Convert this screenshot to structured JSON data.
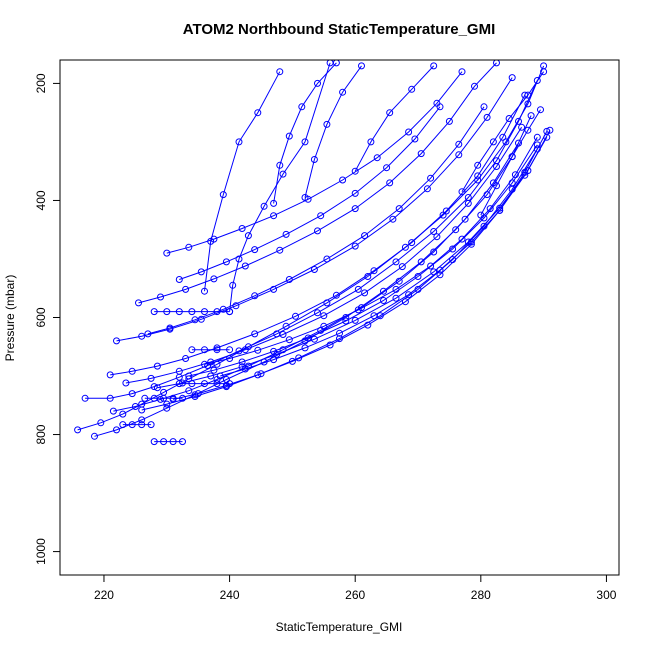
{
  "chart_data": {
    "type": "line",
    "title": "ATOM2 Northbound StaticTemperature_GMI",
    "xlabel": "StaticTemperature_GMI",
    "ylabel": "Pressure (mbar)",
    "xlim": [
      213,
      302
    ],
    "ylim": [
      1040,
      160
    ],
    "y_reversed": true,
    "x_ticks": [
      220,
      240,
      260,
      280,
      300
    ],
    "y_ticks": [
      200,
      400,
      600,
      800,
      1000
    ],
    "grid": false,
    "line_color": "#0000ff",
    "marker": "open-circle",
    "series": [
      {
        "x": [
          215.8,
          219.5,
          223.0,
          226.0,
          229.5,
          233.5,
          238.0,
          243.0,
          249.0,
          255.5,
          262.0,
          268.0,
          274.0,
          279.5,
          284.0,
          287.5,
          290.0
        ],
        "y": [
          792,
          780,
          765,
          748,
          728,
          705,
          680,
          650,
          615,
          575,
          530,
          480,
          425,
          365,
          300,
          235,
          170
        ]
      },
      {
        "x": [
          217.0,
          221.0,
          224.5,
          228.0,
          232.0,
          236.5,
          241.5,
          247.5,
          254.0,
          260.5,
          266.5,
          272.5,
          278.0,
          282.5,
          286.0,
          289.0
        ],
        "y": [
          738,
          738,
          730,
          718,
          702,
          682,
          657,
          628,
          592,
          552,
          505,
          453,
          395,
          332,
          265,
          195
        ]
      },
      {
        "x": [
          218.5,
          222.0,
          226.0,
          230.0,
          234.5,
          239.5,
          245.5,
          252.0,
          258.5,
          264.5,
          270.5,
          276.0,
          281.0,
          285.0,
          288.0
        ],
        "y": [
          803,
          792,
          775,
          755,
          732,
          706,
          676,
          640,
          600,
          555,
          505,
          450,
          390,
          325,
          255
        ]
      },
      {
        "x": [
          221.0,
          224.5,
          228.5,
          233.0,
          238.0,
          244.0,
          250.5,
          257.0,
          263.0,
          269.0,
          274.5,
          279.5,
          283.5,
          287.0
        ],
        "y": [
          698,
          692,
          683,
          670,
          652,
          628,
          598,
          562,
          520,
          472,
          418,
          358,
          292,
          220
        ]
      },
      {
        "x": [
          222.0,
          226.0,
          230.5,
          235.5,
          241.0,
          247.0,
          253.5,
          260.0,
          266.0,
          271.5,
          276.5,
          281.0,
          285.0
        ],
        "y": [
          640,
          632,
          620,
          603,
          580,
          552,
          518,
          478,
          432,
          380,
          322,
          258,
          190
        ]
      },
      {
        "x": [
          225.5,
          229.0,
          233.0,
          237.5,
          242.5,
          248.0,
          254.0,
          260.0,
          265.5,
          270.5,
          275.0,
          279.0,
          282.5
        ],
        "y": [
          575,
          565,
          552,
          534,
          512,
          485,
          452,
          414,
          370,
          320,
          265,
          205,
          165
        ]
      },
      {
        "x": [
          230.0,
          233.5,
          237.5,
          242.0,
          247.0,
          252.5,
          258.0,
          263.5,
          268.5,
          273.0,
          277.0
        ],
        "y": [
          490,
          480,
          466,
          448,
          426,
          398,
          365,
          327,
          283,
          234,
          180
        ]
      },
      {
        "x": [
          232.0,
          235.5,
          239.5,
          244.0,
          249.0,
          254.5,
          260.0,
          265.0,
          269.5,
          273.5
        ],
        "y": [
          535,
          522,
          505,
          484,
          458,
          426,
          388,
          344,
          295,
          240
        ]
      },
      {
        "x": [
          227.0,
          230.5,
          234.5,
          239.0,
          244.0,
          249.5,
          255.5,
          261.5,
          267.0,
          272.0,
          276.5,
          280.5
        ],
        "y": [
          628,
          618,
          604,
          586,
          563,
          535,
          500,
          460,
          414,
          362,
          304,
          240
        ]
      },
      {
        "x": [
          223.5,
          227.5,
          232.0,
          237.0,
          242.5,
          248.5,
          255.0,
          261.5,
          267.5,
          273.0,
          278.0,
          282.5,
          286.5
        ],
        "y": [
          712,
          704,
          692,
          676,
          655,
          629,
          597,
          558,
          513,
          462,
          405,
          342,
          275
        ]
      },
      {
        "x": [
          226.0,
          230.0,
          234.5,
          239.5,
          245.0,
          251.0,
          257.5,
          264.0,
          270.0,
          275.5,
          280.5,
          285.0,
          289.0
        ],
        "y": [
          758,
          748,
          735,
          718,
          696,
          669,
          636,
          597,
          552,
          501,
          444,
          381,
          312
        ]
      },
      {
        "x": [
          228.5,
          232.5,
          237.0,
          242.0,
          247.5,
          253.5,
          260.0,
          266.5,
          272.5,
          278.0,
          283.0,
          287.5,
          291.0
        ],
        "y": [
          720,
          712,
          700,
          684,
          663,
          637,
          605,
          567,
          522,
          471,
          413,
          349,
          280
        ]
      },
      {
        "x": [
          231.0,
          235.0,
          239.5,
          244.5,
          250.0,
          256.0,
          262.0,
          268.0,
          273.5,
          278.5,
          283.0,
          287.0,
          290.5
        ],
        "y": [
          740,
          730,
          716,
          698,
          675,
          647,
          613,
          573,
          527,
          475,
          417,
          352,
          282
        ]
      },
      {
        "x": [
          233.5,
          237.5,
          242.0,
          247.0,
          252.5,
          258.5,
          264.5,
          270.0,
          275.5,
          280.5,
          285.0,
          289.0
        ],
        "y": [
          700,
          690,
          676,
          658,
          635,
          606,
          571,
          530,
          483,
          430,
          370,
          305
        ]
      },
      {
        "x": [
          236.0,
          240.0,
          244.5,
          249.5,
          255.0,
          260.5,
          266.5,
          272.0,
          277.0,
          281.5,
          285.5,
          289.0
        ],
        "y": [
          680,
          670,
          656,
          638,
          615,
          587,
          552,
          512,
          466,
          414,
          356,
          292
        ]
      },
      {
        "x": [
          238.5,
          242.5,
          247.0,
          252.0,
          257.5,
          263.0,
          268.5,
          273.5,
          278.5,
          283.0,
          287.0,
          290.5
        ],
        "y": [
          700,
          688,
          672,
          652,
          627,
          597,
          561,
          519,
          471,
          417,
          357,
          292
        ]
      },
      {
        "x": [
          221.5,
          225.0,
          229.0,
          233.5,
          238.0,
          243.0,
          248.5,
          254.5,
          261.0,
          267.0,
          272.5,
          277.5,
          282.0,
          286.0
        ],
        "y": [
          760,
          752,
          740,
          725,
          706,
          683,
          655,
          622,
          583,
          538,
          488,
          432,
          370,
          302
        ]
      },
      {
        "x": [
          228.0,
          229.5,
          231.0,
          232.5
        ],
        "y": [
          812,
          812,
          812,
          812
        ]
      },
      {
        "x": [
          228.0,
          230.0,
          232.0,
          234.0,
          236.0,
          238.0,
          240.0
        ],
        "y": [
          590,
          590,
          590,
          590,
          590,
          590,
          590
        ]
      },
      {
        "x": [
          232.0,
          234.0,
          236.0,
          238.0,
          240.0
        ],
        "y": [
          713,
          713,
          713,
          713,
          713
        ]
      },
      {
        "x": [
          226.5,
          228.0,
          229.5,
          231.0,
          232.5
        ],
        "y": [
          738,
          738,
          738,
          738,
          738
        ]
      },
      {
        "x": [
          223.0,
          224.5,
          226.0,
          227.5
        ],
        "y": [
          783,
          783,
          783,
          783
        ]
      },
      {
        "x": [
          234.0,
          236.0,
          238.0,
          240.0
        ],
        "y": [
          655,
          655,
          655,
          655
        ]
      },
      {
        "x": [
          240.0,
          240.5,
          241.5,
          243.0,
          245.5,
          248.5,
          252.0,
          256.0
        ],
        "y": [
          590,
          545,
          500,
          460,
          410,
          355,
          300,
          165
        ]
      },
      {
        "x": [
          236.0,
          237.0,
          239.0,
          241.5,
          244.5,
          248.0
        ],
        "y": [
          555,
          470,
          390,
          300,
          250,
          180
        ]
      },
      {
        "x": [
          247.0,
          248.0,
          249.5,
          251.5,
          254.0,
          257.0
        ],
        "y": [
          405,
          340,
          290,
          240,
          200,
          165
        ]
      },
      {
        "x": [
          252.0,
          253.5,
          255.5,
          258.0,
          261.0
        ],
        "y": [
          395,
          330,
          270,
          215,
          170
        ]
      },
      {
        "x": [
          260.0,
          262.5,
          265.5,
          269.0,
          272.5
        ],
        "y": [
          350,
          300,
          250,
          210,
          170
        ]
      },
      {
        "x": [
          277.0,
          279.5,
          282.0,
          284.5,
          287.5,
          290.0
        ],
        "y": [
          385,
          340,
          300,
          260,
          220,
          180
        ]
      },
      {
        "x": [
          280.0,
          282.5,
          285.0,
          287.5,
          289.5
        ],
        "y": [
          425,
          375,
          325,
          280,
          245
        ]
      }
    ]
  }
}
